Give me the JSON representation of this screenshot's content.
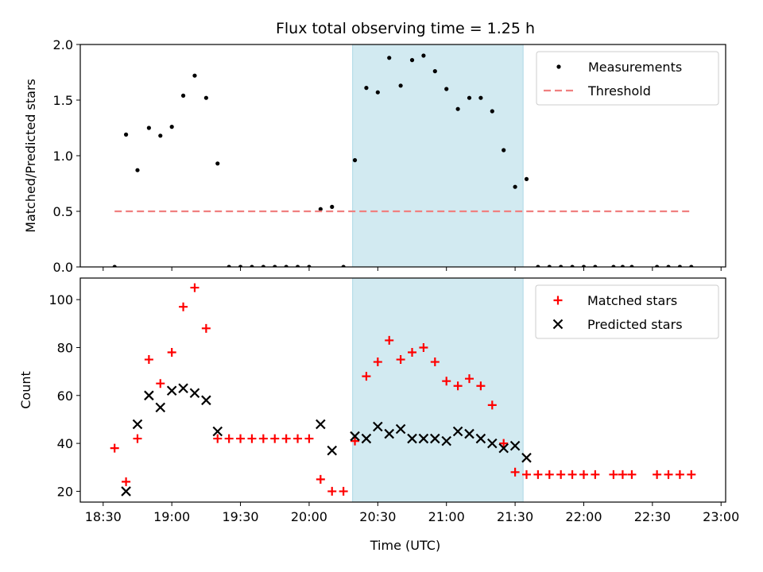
{
  "chart_data": {
    "title": "Flux total observing time = 1.25 h",
    "xlabel": "Time (UTC)",
    "x_ticks": [
      "18:30",
      "19:00",
      "19:30",
      "20:00",
      "20:30",
      "21:00",
      "21:30",
      "22:00",
      "22:30",
      "23:00"
    ],
    "x_tick_minutes": [
      1110,
      1140,
      1170,
      1200,
      1230,
      1260,
      1290,
      1320,
      1350,
      1380
    ],
    "xlim_minutes": [
      1100,
      1382
    ],
    "shaded_span_minutes": [
      1219,
      1293.5
    ],
    "shaded_color": "#add8e6",
    "panels": [
      {
        "type": "scatter",
        "ylabel": "Matched/Predicted stars",
        "ylim": [
          0,
          2.0
        ],
        "y_ticks": [
          "0.0",
          "0.5",
          "1.0",
          "1.5",
          "2.0"
        ],
        "y_tick_values": [
          0,
          0.5,
          1.0,
          1.5,
          2.0
        ],
        "legend_position": "top-right",
        "series": [
          {
            "name": "Measurements",
            "marker": "dot",
            "color": "#000000",
            "x": [
              1115,
              1120,
              1125,
              1130,
              1135,
              1140,
              1145,
              1150,
              1155,
              1160,
              1165,
              1170,
              1175,
              1180,
              1185,
              1190,
              1195,
              1200,
              1205,
              1210,
              1215,
              1220,
              1225,
              1230,
              1235,
              1240,
              1245,
              1250,
              1255,
              1260,
              1265,
              1270,
              1275,
              1280,
              1285,
              1290,
              1295,
              1300,
              1305,
              1310,
              1315,
              1320,
              1325,
              1333,
              1337,
              1341,
              1352,
              1357,
              1362,
              1367
            ],
            "y": [
              0,
              1.19,
              0.87,
              1.25,
              1.18,
              1.26,
              1.54,
              1.72,
              1.52,
              0.93,
              0,
              0,
              0,
              0,
              0,
              0,
              0,
              0,
              0.52,
              0.54,
              0,
              0.96,
              1.61,
              1.57,
              1.88,
              1.63,
              1.86,
              1.9,
              1.76,
              1.6,
              1.42,
              1.52,
              1.52,
              1.4,
              1.05,
              0.72,
              0.79,
              0,
              0,
              0,
              0,
              0,
              0,
              0,
              0,
              0,
              0,
              0,
              0,
              0
            ]
          },
          {
            "name": "Threshold",
            "marker": "dashed-line",
            "color": "#f08080",
            "x": [
              1115,
              1367
            ],
            "y": [
              0.5,
              0.5
            ]
          }
        ]
      },
      {
        "type": "scatter",
        "ylabel": "Count",
        "ylim": [
          15.5,
          109
        ],
        "y_ticks": [
          "20",
          "40",
          "60",
          "80",
          "100"
        ],
        "y_tick_values": [
          20,
          40,
          60,
          80,
          100
        ],
        "legend_position": "top-right",
        "series": [
          {
            "name": "Matched stars",
            "marker": "plus",
            "color": "#ff0000",
            "x": [
              1115,
              1120,
              1125,
              1130,
              1135,
              1140,
              1145,
              1150,
              1155,
              1160,
              1165,
              1170,
              1175,
              1180,
              1185,
              1190,
              1195,
              1200,
              1205,
              1210,
              1215,
              1220,
              1225,
              1230,
              1235,
              1240,
              1245,
              1250,
              1255,
              1260,
              1265,
              1270,
              1275,
              1280,
              1285,
              1290,
              1295,
              1300,
              1305,
              1310,
              1315,
              1320,
              1325,
              1333,
              1337,
              1341,
              1352,
              1357,
              1362,
              1367
            ],
            "y": [
              38,
              24,
              42,
              75,
              65,
              78,
              97,
              105,
              88,
              42,
              42,
              42,
              42,
              42,
              42,
              42,
              42,
              42,
              25,
              20,
              20,
              41,
              68,
              74,
              83,
              75,
              78,
              80,
              74,
              66,
              64,
              67,
              64,
              56,
              40,
              28,
              27,
              27,
              27,
              27,
              27,
              27,
              27,
              27,
              27,
              27,
              27,
              27,
              27,
              27
            ]
          },
          {
            "name": "Predicted stars",
            "marker": "x",
            "color": "#000000",
            "x": [
              1120,
              1125,
              1130,
              1135,
              1140,
              1145,
              1150,
              1155,
              1160,
              1205,
              1210,
              1220,
              1225,
              1230,
              1235,
              1240,
              1245,
              1250,
              1255,
              1260,
              1265,
              1270,
              1275,
              1280,
              1285,
              1290,
              1295
            ],
            "y": [
              20,
              48,
              60,
              55,
              62,
              63,
              61,
              58,
              45,
              48,
              37,
              43,
              42,
              47,
              44,
              46,
              42,
              42,
              42,
              41,
              45,
              44,
              42,
              40,
              38,
              39,
              34
            ]
          }
        ]
      }
    ]
  }
}
